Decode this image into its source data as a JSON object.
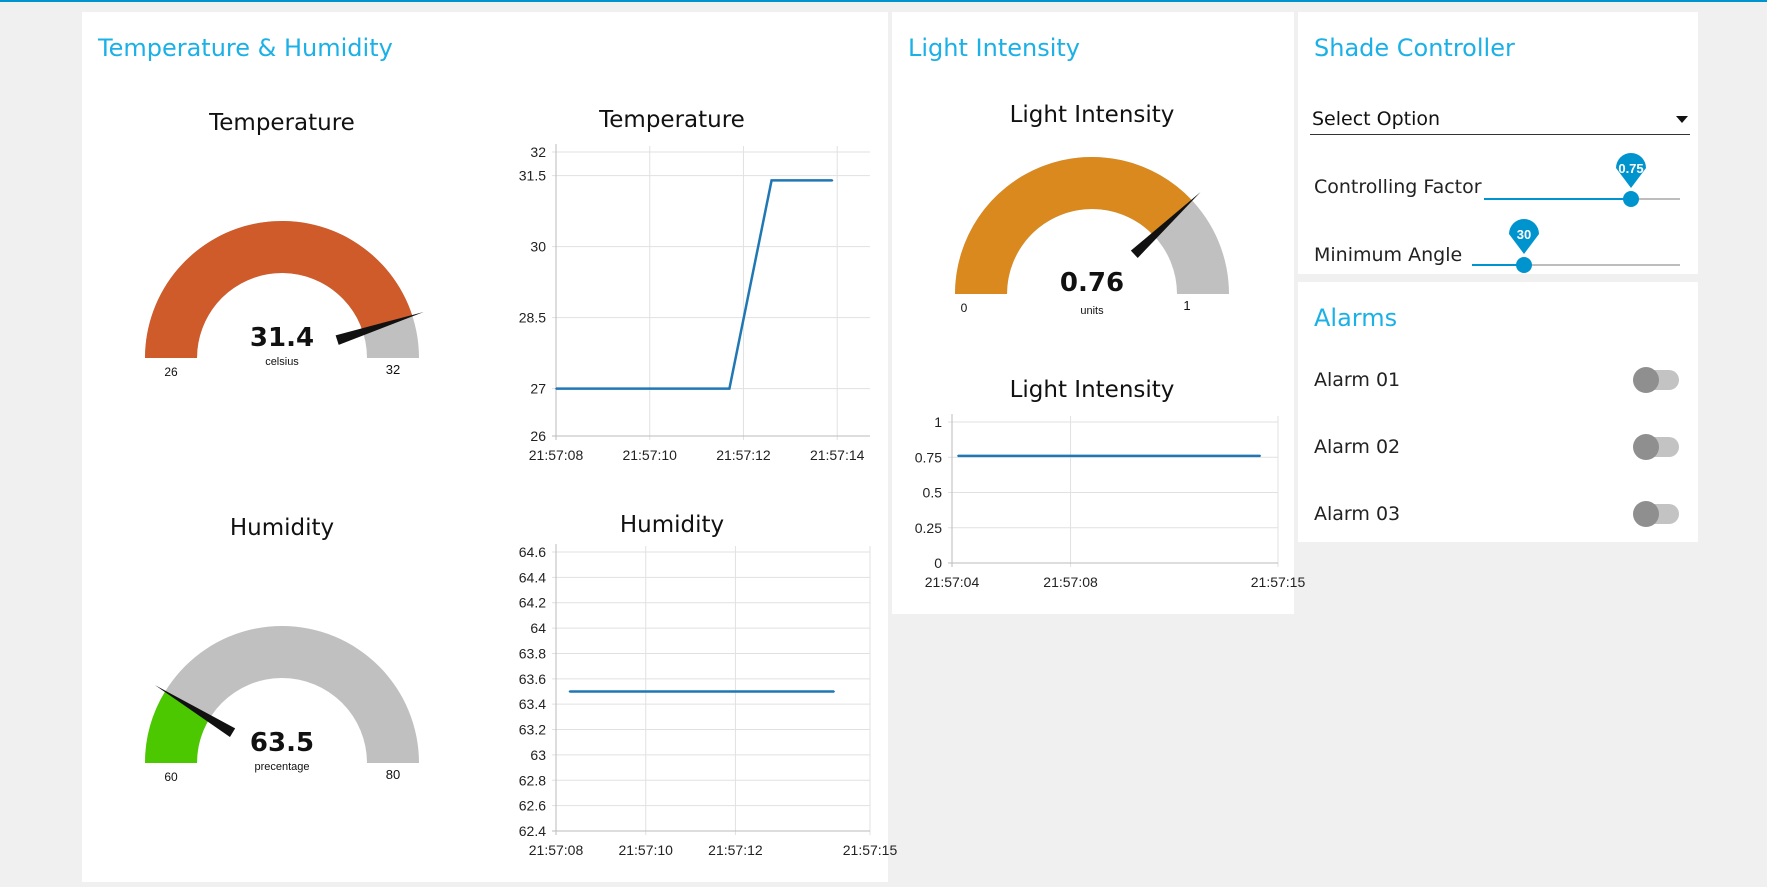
{
  "colors": {
    "accent": "#1bb0e6",
    "slider": "#0094ce",
    "temp_gauge": "#cf5a2a",
    "humidity_gauge": "#4cc800",
    "light_gauge": "#d9891e",
    "gauge_bg": "#c0c0c0",
    "line": "#1f77b4"
  },
  "temp_humidity": {
    "title": "Temperature & Humidity",
    "temp_gauge": {
      "title": "Temperature",
      "value": "31.4",
      "numeric": 31.4,
      "unit": "celsius",
      "min": "26",
      "max": "32",
      "min_v": 26,
      "max_v": 32
    },
    "humidity_gauge": {
      "title": "Humidity",
      "value": "63.5",
      "numeric": 63.5,
      "unit": "precentage",
      "min": "60",
      "max": "80",
      "min_v": 60,
      "max_v": 80
    }
  },
  "light": {
    "title": "Light Intensity",
    "gauge": {
      "title": "Light Intensity",
      "value": "0.76",
      "numeric": 0.76,
      "unit": "units",
      "min": "0",
      "max": "1",
      "min_v": 0,
      "max_v": 1
    }
  },
  "shade": {
    "title": "Shade Controller",
    "select_value": "Select Option",
    "controlling_factor": {
      "label": "Controlling Factor",
      "value": "0.75",
      "fraction": 0.75
    },
    "minimum_angle": {
      "label": "Minimum Angle",
      "value": "30",
      "fraction": 0.25
    }
  },
  "alarms": {
    "title": "Alarms",
    "items": [
      {
        "label": "Alarm 01",
        "on": false
      },
      {
        "label": "Alarm 02",
        "on": false
      },
      {
        "label": "Alarm 03",
        "on": false
      }
    ]
  },
  "chart_data": [
    {
      "type": "line",
      "title": "Temperature",
      "x": [
        "21:57:08",
        "21:57:11.7",
        "21:57:12.6",
        "21:57:13.9"
      ],
      "y": [
        27,
        27,
        31.4,
        31.4
      ],
      "x_ticks": [
        "21:57:08",
        "21:57:10",
        "21:57:12",
        "21:57:14"
      ],
      "y_ticks": [
        "26",
        "27",
        "28.5",
        "30",
        "31.5",
        "32"
      ],
      "xlim": [
        "21:57:08",
        "21:57:14.7"
      ],
      "ylim": [
        26,
        32
      ],
      "grid": true
    },
    {
      "type": "line",
      "title": "Humidity",
      "x": [
        "21:57:08.3",
        "21:57:14.2"
      ],
      "y": [
        63.5,
        63.5
      ],
      "x_ticks": [
        "21:57:08",
        "21:57:10",
        "21:57:12",
        "21:57:15"
      ],
      "y_ticks": [
        "62.4",
        "62.6",
        "62.8",
        "63",
        "63.2",
        "63.4",
        "63.6",
        "63.8",
        "64",
        "64.2",
        "64.4",
        "64.6"
      ],
      "xlim": [
        "21:57:08",
        "21:57:15"
      ],
      "ylim": [
        62.4,
        64.6
      ],
      "grid": true
    },
    {
      "type": "line",
      "title": "Light Intensity",
      "x": [
        "21:57:04.2",
        "21:57:14.4"
      ],
      "y": [
        0.76,
        0.76
      ],
      "x_ticks": [
        "21:57:04",
        "21:57:08",
        "21:57:15"
      ],
      "y_ticks": [
        "0",
        "0.25",
        "0.5",
        "0.75",
        "1"
      ],
      "xlim": [
        "21:57:04",
        "21:57:15"
      ],
      "ylim": [
        0,
        1
      ],
      "grid": true
    }
  ]
}
